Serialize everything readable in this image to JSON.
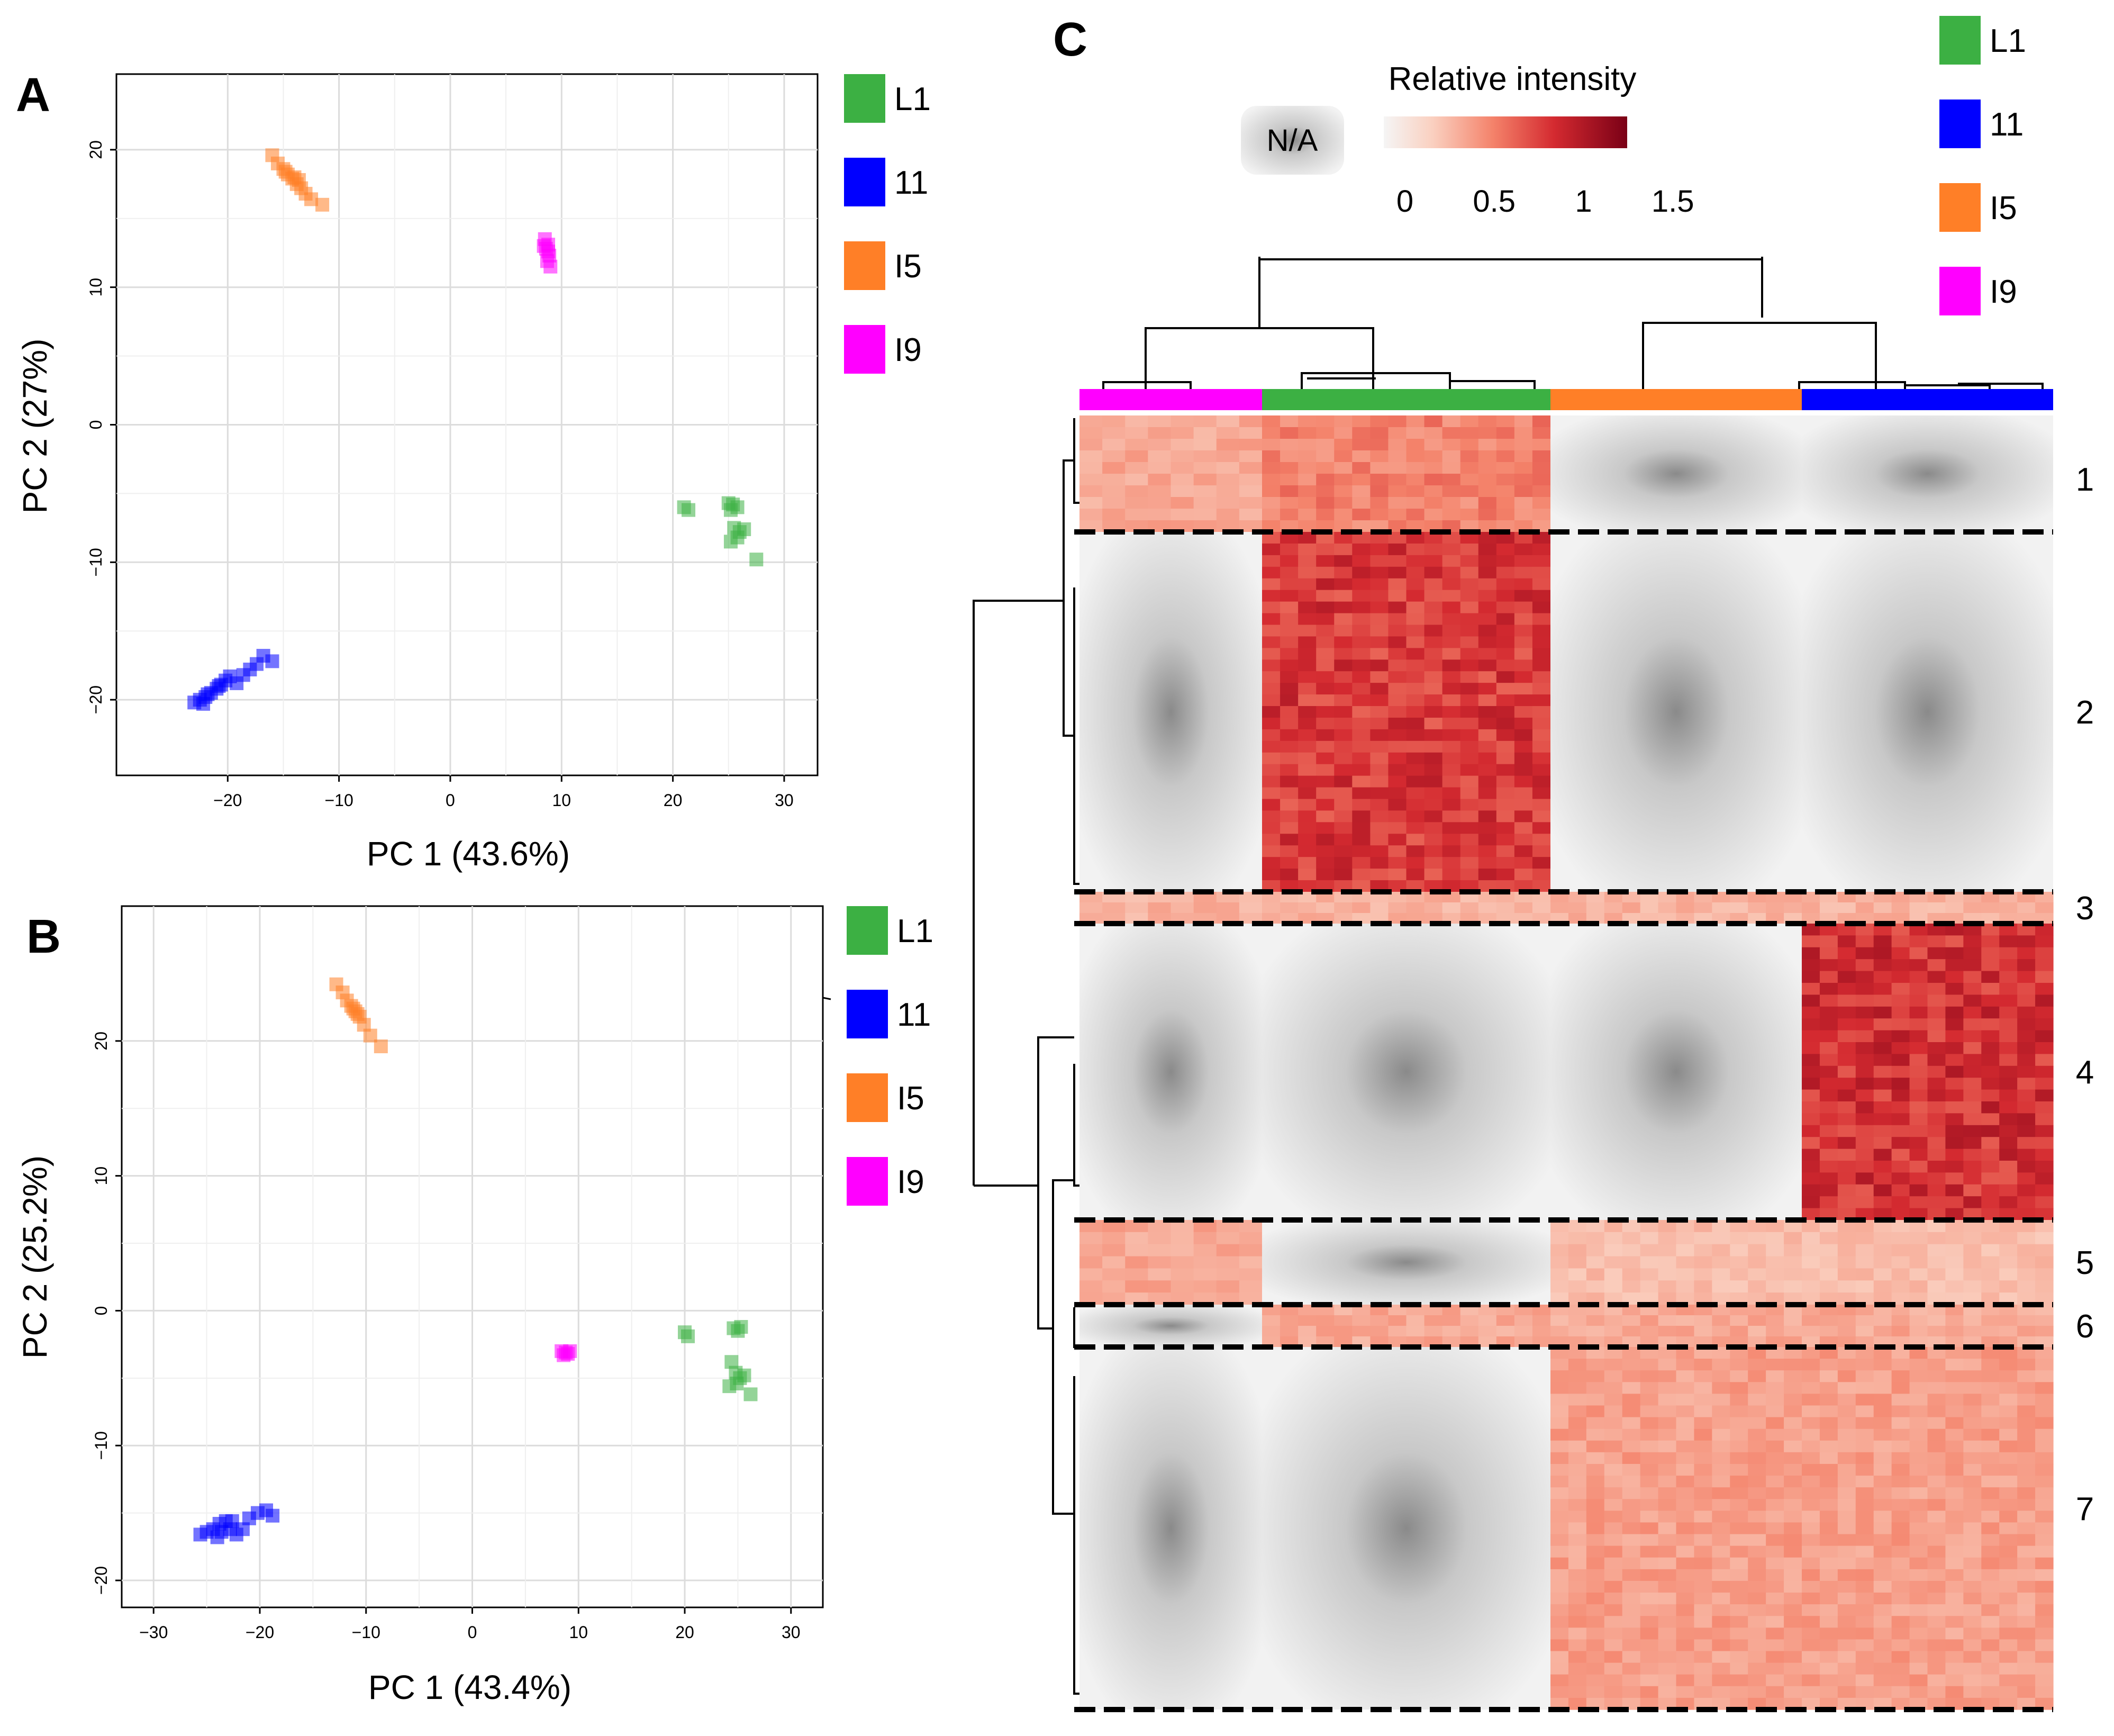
{
  "colors": {
    "L1": "#3cb043",
    "I1": "#0000ff",
    "I5": "#ff7f27",
    "I9": "#ff00ff",
    "panel_border": "#000000",
    "grid": "#e0e0e0",
    "na": "#d9d9d9",
    "heat_low": "#f5f5f5",
    "heat_high": "#8b0016",
    "red_mid": "#e0413e"
  },
  "legend_groups": [
    {
      "key": "L1",
      "label": "L1"
    },
    {
      "key": "I1",
      "label": "11"
    },
    {
      "key": "I5",
      "label": "I5"
    },
    {
      "key": "I9",
      "label": "I9"
    }
  ],
  "chart_data": [
    {
      "panel": "A",
      "type": "scatter",
      "xlabel": "PC 1 (43.6%)",
      "ylabel": "PC 2 (27%)",
      "xlim": [
        -30,
        33
      ],
      "ylim": [
        -25.5,
        25.5
      ],
      "xticks": [
        -20,
        -10,
        0,
        10,
        20,
        30
      ],
      "yticks": [
        -20,
        -10,
        0,
        10,
        20
      ],
      "grid": true,
      "series": [
        {
          "name": "I5",
          "color": "#ff7f27",
          "points": [
            [
              -16,
              19.6
            ],
            [
              -15.5,
              19
            ],
            [
              -15,
              18.6
            ],
            [
              -14.6,
              18.2
            ],
            [
              -14.2,
              17.9
            ],
            [
              -13.8,
              17.5
            ],
            [
              -13.4,
              17.2
            ],
            [
              -13,
              16.8
            ],
            [
              -12.5,
              16.4
            ],
            [
              -11.5,
              16
            ],
            [
              -14.8,
              18.4
            ],
            [
              -14,
              18
            ],
            [
              -13.6,
              17.8
            ]
          ]
        },
        {
          "name": "I9",
          "color": "#ff00ff",
          "points": [
            [
              8.5,
              13.5
            ],
            [
              8.8,
              13.1
            ],
            [
              8.6,
              12.8
            ],
            [
              8.9,
              12.3
            ],
            [
              8.7,
              11.9
            ],
            [
              9.0,
              11.5
            ],
            [
              8.4,
              13.0
            ],
            [
              8.8,
              12.6
            ]
          ]
        },
        {
          "name": "L1",
          "color": "#3cb043",
          "points": [
            [
              21,
              -6
            ],
            [
              21.4,
              -6.2
            ],
            [
              25,
              -5.7
            ],
            [
              25.4,
              -5.8
            ],
            [
              25.8,
              -6.0
            ],
            [
              25.2,
              -6.2
            ],
            [
              25.5,
              -7.5
            ],
            [
              26,
              -7.8
            ],
            [
              26.4,
              -7.6
            ],
            [
              25.8,
              -8.2
            ],
            [
              25.2,
              -8.5
            ],
            [
              27.5,
              -9.8
            ]
          ]
        },
        {
          "name": "I1",
          "color": "#0000ff",
          "points": [
            [
              -23,
              -20.2
            ],
            [
              -22.5,
              -20
            ],
            [
              -22,
              -19.8
            ],
            [
              -21.5,
              -19.5
            ],
            [
              -21,
              -19.2
            ],
            [
              -20.6,
              -18.9
            ],
            [
              -20.2,
              -18.6
            ],
            [
              -19.8,
              -18.3
            ],
            [
              -19.2,
              -18.8
            ],
            [
              -18.6,
              -18.2
            ],
            [
              -18,
              -17.8
            ],
            [
              -17.4,
              -17.4
            ],
            [
              -16.8,
              -16.8
            ],
            [
              -16,
              -17.2
            ],
            [
              -21.8,
              -19.6
            ],
            [
              -20.8,
              -19.0
            ],
            [
              -22.2,
              -20.3
            ]
          ]
        }
      ]
    },
    {
      "panel": "B",
      "type": "scatter",
      "xlabel": "PC 1 (43.4%)",
      "ylabel": "PC 2 (25.2%)",
      "xlim": [
        -33,
        33
      ],
      "ylim": [
        -22,
        30
      ],
      "xticks": [
        -30,
        -20,
        -10,
        0,
        10,
        20,
        30
      ],
      "yticks": [
        -20,
        -10,
        0,
        10,
        20
      ],
      "grid": true,
      "series": [
        {
          "name": "I5",
          "color": "#ff7f27",
          "points": [
            [
              -12.8,
              24.2
            ],
            [
              -12.2,
              23.6
            ],
            [
              -11.8,
              23
            ],
            [
              -11.4,
              22.6
            ],
            [
              -11,
              22.2
            ],
            [
              -10.6,
              21.8
            ],
            [
              -10.2,
              21.2
            ],
            [
              -9.6,
              20.4
            ],
            [
              -8.6,
              19.6
            ],
            [
              -11.2,
              22.4
            ],
            [
              -10.8,
              22
            ]
          ]
        },
        {
          "name": "I9",
          "color": "#ff00ff",
          "points": [
            [
              8.4,
              -3.0
            ],
            [
              8.8,
              -3.1
            ],
            [
              9.2,
              -3.0
            ],
            [
              8.6,
              -3.3
            ],
            [
              9.0,
              -3.2
            ]
          ]
        },
        {
          "name": "L1",
          "color": "#3cb043",
          "points": [
            [
              20,
              -1.6
            ],
            [
              20.3,
              -1.9
            ],
            [
              24.6,
              -1.3
            ],
            [
              25,
              -1.5
            ],
            [
              25.3,
              -1.2
            ],
            [
              24.4,
              -3.8
            ],
            [
              24.8,
              -4.6
            ],
            [
              25.2,
              -5.0
            ],
            [
              25.6,
              -4.8
            ],
            [
              24.2,
              -5.6
            ],
            [
              24.9,
              -5.4
            ],
            [
              26.2,
              -6.2
            ]
          ]
        },
        {
          "name": "I1",
          "color": "#0000ff",
          "points": [
            [
              -25.6,
              -16.6
            ],
            [
              -25,
              -16.4
            ],
            [
              -24.4,
              -16.2
            ],
            [
              -23.8,
              -15.8
            ],
            [
              -23.2,
              -15.6
            ],
            [
              -22.8,
              -16.2
            ],
            [
              -22.2,
              -16.6
            ],
            [
              -21.6,
              -16.2
            ],
            [
              -21,
              -15.4
            ],
            [
              -20.2,
              -15
            ],
            [
              -19.4,
              -14.8
            ],
            [
              -18.8,
              -15.2
            ],
            [
              -23.6,
              -16.4
            ],
            [
              -22.6,
              -15.6
            ],
            [
              -24,
              -16.8
            ]
          ]
        }
      ]
    },
    {
      "panel": "C",
      "type": "heatmap",
      "colorbar_title": "Relative intensity",
      "colorbar_ticks": [
        "0",
        "0.5",
        "1",
        "1.5"
      ],
      "colorbar_range": [
        0,
        1.6
      ],
      "na_label": "N/A",
      "column_groups": [
        {
          "name": "I9",
          "columns": 8
        },
        {
          "name": "L1",
          "columns": 16
        },
        {
          "name": "I5",
          "columns": 14
        },
        {
          "name": "I1",
          "columns": 14
        }
      ],
      "clusters": [
        {
          "label": "1",
          "values": {
            "I9": 0.5,
            "L1": 0.7,
            "I5": null,
            "I1": null
          }
        },
        {
          "label": "2",
          "values": {
            "I9": null,
            "L1": 1.05,
            "I5": null,
            "I1": null
          }
        },
        {
          "label": "3",
          "values": {
            "I9": 0.45,
            "L1": 0.45,
            "I5": 0.45,
            "I1": 0.45
          }
        },
        {
          "label": "4",
          "values": {
            "I9": null,
            "L1": null,
            "I5": null,
            "I1": 1.1
          }
        },
        {
          "label": "5",
          "values": {
            "I9": 0.5,
            "L1": null,
            "I5": 0.4,
            "I1": 0.4
          }
        },
        {
          "label": "6",
          "values": {
            "I9": null,
            "L1": 0.5,
            "I5": 0.5,
            "I1": 0.5
          }
        },
        {
          "label": "7",
          "values": {
            "I9": null,
            "L1": null,
            "I5": 0.55,
            "I1": 0.55
          }
        }
      ]
    }
  ],
  "panel_labels": {
    "A": "A",
    "B": "B",
    "C": "C"
  }
}
